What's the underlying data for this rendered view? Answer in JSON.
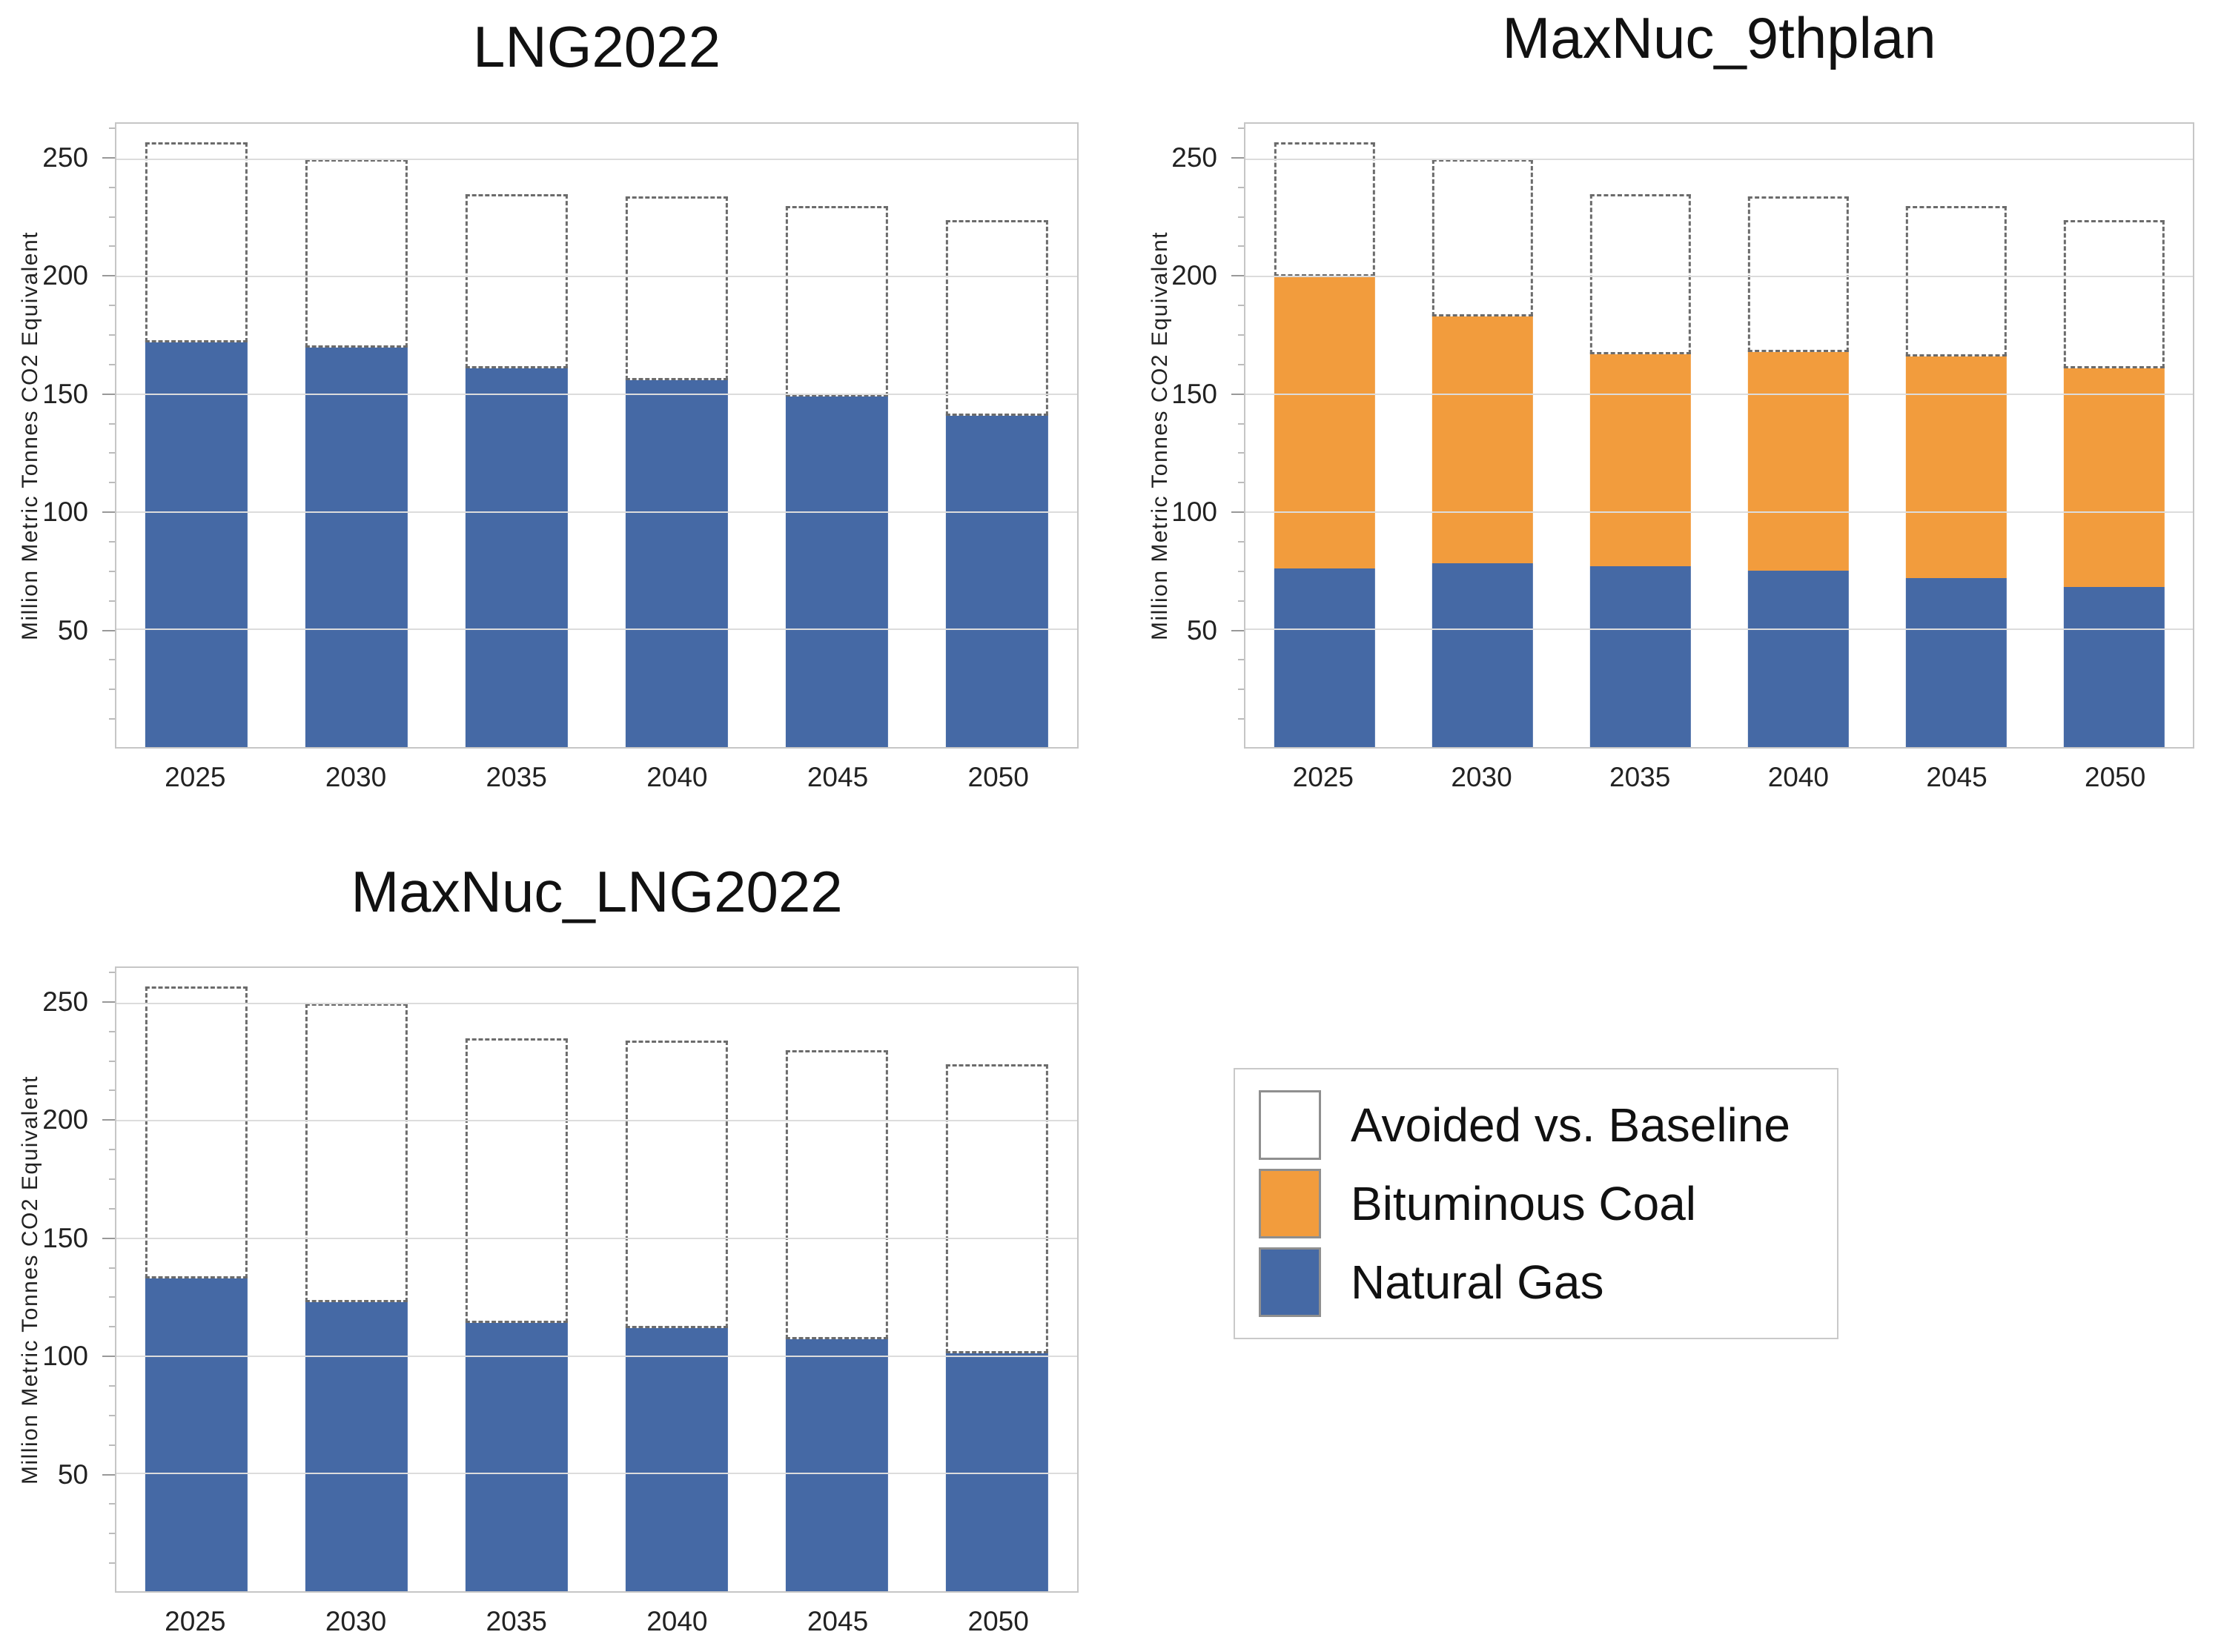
{
  "axis": {
    "y_label": "Million Metric Tonnes CO2 Equivalent",
    "y_ticks": [
      50,
      100,
      150,
      200,
      250
    ],
    "y_minor_step": 12.5,
    "y_max": 265,
    "grid": "horizontal"
  },
  "colors": {
    "natural_gas": "#4569A5",
    "bituminous_coal": "#F29C3D",
    "avoided_fill": "#FFFFFF",
    "avoided_border": "#6B6B6B"
  },
  "legend": {
    "position": "bottom-right-quadrant",
    "items": [
      {
        "label": "Avoided vs. Baseline",
        "color_key": "avoided"
      },
      {
        "label": "Bituminous Coal",
        "color_key": "bituminous_coal"
      },
      {
        "label": "Natural Gas",
        "color_key": "natural_gas"
      }
    ]
  },
  "chart_data": [
    {
      "type": "bar",
      "title": "LNG2022",
      "categories": [
        "2025",
        "2030",
        "2035",
        "2040",
        "2045",
        "2050"
      ],
      "xlabel": "",
      "ylabel": "Million Metric Tonnes CO2 Equivalent",
      "ylim": [
        0,
        265
      ],
      "baseline_total": [
        257,
        250,
        235,
        234,
        230,
        224
      ],
      "series": [
        {
          "name": "Natural Gas",
          "color_key": "natural_gas",
          "values": [
            172,
            170,
            161,
            156,
            149,
            141
          ]
        },
        {
          "name": "Avoided vs. Baseline",
          "color_key": "avoided",
          "values": [
            85,
            80,
            74,
            78,
            81,
            83
          ]
        }
      ]
    },
    {
      "type": "bar",
      "title": "MaxNuc_9thplan",
      "categories": [
        "2025",
        "2030",
        "2035",
        "2040",
        "2045",
        "2050"
      ],
      "xlabel": "",
      "ylabel": "Million Metric Tonnes CO2 Equivalent",
      "ylim": [
        0,
        265
      ],
      "baseline_total": [
        257,
        250,
        235,
        234,
        230,
        224
      ],
      "series": [
        {
          "name": "Natural Gas",
          "color_key": "natural_gas",
          "values": [
            76,
            78,
            77,
            75,
            72,
            68
          ]
        },
        {
          "name": "Bituminous Coal",
          "color_key": "bituminous_coal",
          "values": [
            124,
            105,
            90,
            93,
            94,
            93
          ]
        },
        {
          "name": "Avoided vs. Baseline",
          "color_key": "avoided",
          "values": [
            57,
            67,
            68,
            66,
            64,
            63
          ]
        }
      ]
    },
    {
      "type": "bar",
      "title": "MaxNuc_LNG2022",
      "categories": [
        "2025",
        "2030",
        "2035",
        "2040",
        "2045",
        "2050"
      ],
      "xlabel": "",
      "ylabel": "Million Metric Tonnes CO2 Equivalent",
      "ylim": [
        0,
        265
      ],
      "baseline_total": [
        257,
        250,
        235,
        234,
        230,
        224
      ],
      "series": [
        {
          "name": "Natural Gas",
          "color_key": "natural_gas",
          "values": [
            133,
            123,
            114,
            112,
            107,
            101
          ]
        },
        {
          "name": "Avoided vs. Baseline",
          "color_key": "avoided",
          "values": [
            124,
            127,
            121,
            122,
            123,
            123
          ]
        }
      ]
    }
  ]
}
